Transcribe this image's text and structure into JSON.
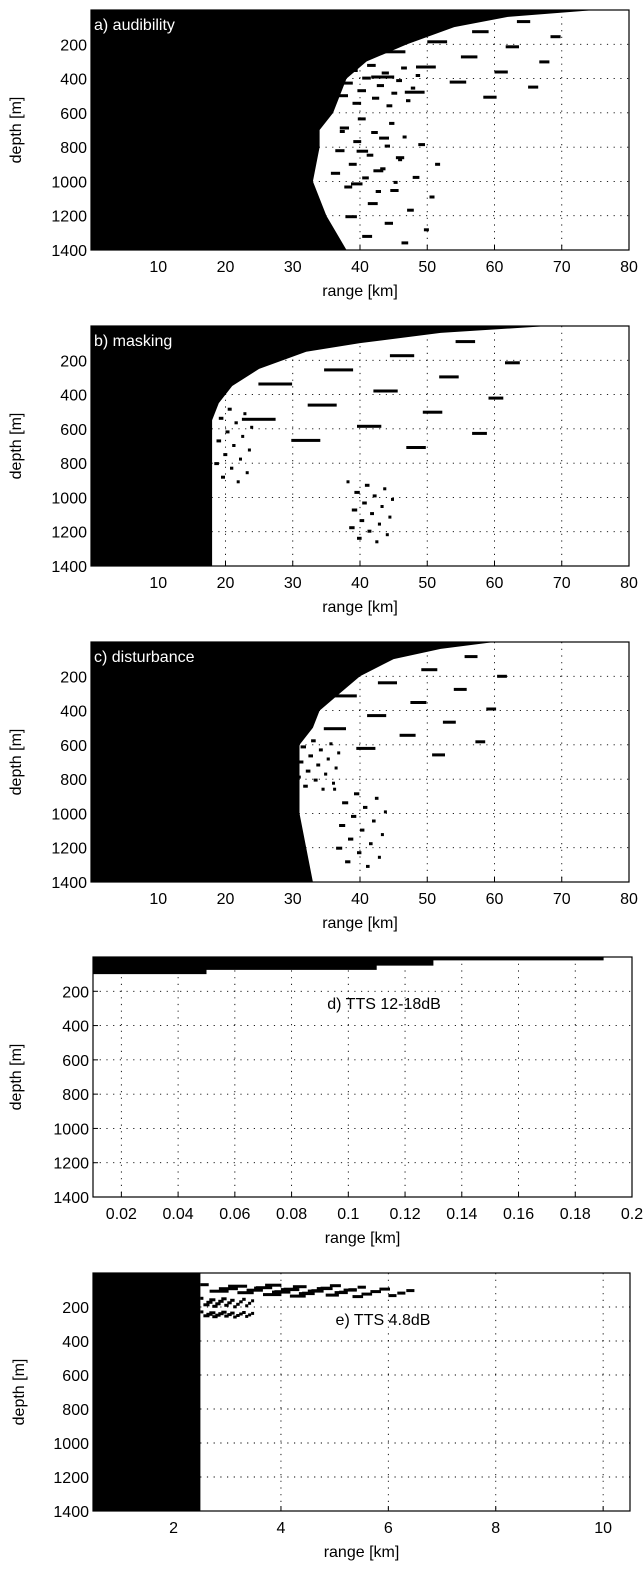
{
  "chart_data": [
    {
      "type": "heatmap",
      "title": "a) audibility",
      "xlabel": "range [km]",
      "ylabel": "depth [m]",
      "xlim": [
        0,
        80
      ],
      "ylim": [
        0,
        1400
      ],
      "y_reversed": true,
      "xticks": [
        10,
        20,
        30,
        40,
        50,
        60,
        70,
        80
      ],
      "yticks": [
        200,
        400,
        600,
        800,
        1000,
        1200,
        1400
      ],
      "grid": true,
      "fill_color": "#000000",
      "filled_region": [
        {
          "depth": 0,
          "range": 75
        },
        {
          "depth": 40,
          "range": 62
        },
        {
          "depth": 100,
          "range": 54
        },
        {
          "depth": 200,
          "range": 47
        },
        {
          "depth": 300,
          "range": 41
        },
        {
          "depth": 400,
          "range": 38
        },
        {
          "depth": 500,
          "range": 37
        },
        {
          "depth": 600,
          "range": 36
        },
        {
          "depth": 700,
          "range": 34
        },
        {
          "depth": 800,
          "range": 34
        },
        {
          "depth": 1000,
          "range": 33
        },
        {
          "depth": 1200,
          "range": 35
        },
        {
          "depth": 1400,
          "range": 38
        }
      ],
      "features": [
        {
          "depth_range": [
            300,
            550
          ],
          "range_range": [
            36,
            49
          ]
        },
        {
          "depth_range": [
            600,
            1050
          ],
          "range_range": [
            35,
            47
          ]
        },
        {
          "depth_range": [
            0,
            500
          ],
          "range_range": [
            40,
            70
          ]
        },
        {
          "depth_range": [
            700,
            1350
          ],
          "range_range": [
            37,
            52
          ]
        }
      ]
    },
    {
      "type": "heatmap",
      "title": "b) masking",
      "xlabel": "range [km]",
      "ylabel": "depth [m]",
      "xlim": [
        0,
        80
      ],
      "ylim": [
        0,
        1400
      ],
      "y_reversed": true,
      "xticks": [
        10,
        20,
        30,
        40,
        50,
        60,
        70,
        80
      ],
      "yticks": [
        200,
        400,
        600,
        800,
        1000,
        1200,
        1400
      ],
      "grid": true,
      "fill_color": "#000000",
      "filled_region": [
        {
          "depth": 0,
          "range": 68
        },
        {
          "depth": 40,
          "range": 52
        },
        {
          "depth": 100,
          "range": 40
        },
        {
          "depth": 150,
          "range": 32
        },
        {
          "depth": 250,
          "range": 25
        },
        {
          "depth": 350,
          "range": 21
        },
        {
          "depth": 450,
          "range": 19
        },
        {
          "depth": 550,
          "range": 18
        },
        {
          "depth": 700,
          "range": 18
        },
        {
          "depth": 900,
          "range": 18
        },
        {
          "depth": 1100,
          "range": 18
        },
        {
          "depth": 1250,
          "range": 18
        },
        {
          "depth": 1400,
          "range": 18
        }
      ],
      "features": [
        {
          "depth_range": [
            450,
            900
          ],
          "range_range": [
            18,
            24
          ]
        },
        {
          "depth_range": [
            0,
            700
          ],
          "range_range": [
            20,
            64
          ]
        },
        {
          "depth_range": [
            900,
            1250
          ],
          "range_range": [
            38,
            45
          ]
        }
      ]
    },
    {
      "type": "heatmap",
      "title": "c) disturbance",
      "xlabel": "range [km]",
      "ylabel": "depth [m]",
      "xlim": [
        0,
        80
      ],
      "ylim": [
        0,
        1400
      ],
      "y_reversed": true,
      "xticks": [
        10,
        20,
        30,
        40,
        50,
        60,
        70,
        80
      ],
      "yticks": [
        200,
        400,
        600,
        800,
        1000,
        1200,
        1400
      ],
      "grid": true,
      "fill_color": "#000000",
      "filled_region": [
        {
          "depth": 0,
          "range": 60
        },
        {
          "depth": 40,
          "range": 52
        },
        {
          "depth": 100,
          "range": 45
        },
        {
          "depth": 200,
          "range": 40
        },
        {
          "depth": 300,
          "range": 37
        },
        {
          "depth": 400,
          "range": 34
        },
        {
          "depth": 500,
          "range": 33
        },
        {
          "depth": 600,
          "range": 31
        },
        {
          "depth": 800,
          "range": 31
        },
        {
          "depth": 1000,
          "range": 31
        },
        {
          "depth": 1200,
          "range": 32
        },
        {
          "depth": 1400,
          "range": 33
        }
      ],
      "features": [
        {
          "depth_range": [
            550,
            850
          ],
          "range_range": [
            30,
            37
          ]
        },
        {
          "depth_range": [
            0,
            650
          ],
          "range_range": [
            33,
            62
          ]
        },
        {
          "depth_range": [
            850,
            1300
          ],
          "range_range": [
            36,
            44
          ]
        }
      ]
    },
    {
      "type": "heatmap",
      "title": "d) TTS 12-18dB",
      "xlabel": "range [km]",
      "ylabel": "depth [m]",
      "xlim": [
        0.01,
        0.2
      ],
      "ylim": [
        0,
        1400
      ],
      "y_reversed": true,
      "xticks": [
        0.02,
        0.04,
        0.06,
        0.08,
        0.1,
        0.12,
        0.14,
        0.16,
        0.18,
        0.2
      ],
      "xtick_labels": [
        "0.02",
        "0.04",
        "0.06",
        "0.08",
        "0.1",
        "0.12",
        "0.14",
        "0.16",
        "0.18",
        "0.2"
      ],
      "yticks": [
        200,
        400,
        600,
        800,
        1000,
        1200,
        1400
      ],
      "grid": true,
      "fill_color": "#000000",
      "filled_region": [
        {
          "depth": 0,
          "range": 0.19
        },
        {
          "depth": 20,
          "range": 0.19
        },
        {
          "depth": 20,
          "range": 0.13
        },
        {
          "depth": 50,
          "range": 0.13
        },
        {
          "depth": 50,
          "range": 0.11
        },
        {
          "depth": 75,
          "range": 0.11
        },
        {
          "depth": 75,
          "range": 0.05
        },
        {
          "depth": 100,
          "range": 0.05
        },
        {
          "depth": 100,
          "range": 0.01
        }
      ]
    },
    {
      "type": "heatmap",
      "title": "e) TTS 4.8dB",
      "xlabel": "range [km]",
      "ylabel": "depth [m]",
      "xlim": [
        0.5,
        10.5
      ],
      "ylim": [
        0,
        1400
      ],
      "y_reversed": true,
      "xticks": [
        2,
        4,
        6,
        8,
        10
      ],
      "yticks": [
        200,
        400,
        600,
        800,
        1000,
        1200,
        1400
      ],
      "grid": true,
      "fill_color": "#000000",
      "filled_region": [
        {
          "depth": 0,
          "range": 2.5
        },
        {
          "depth": 1400,
          "range": 2.5
        }
      ],
      "features": [
        {
          "depth_range": [
            60,
            110
          ],
          "range_range": [
            2.5,
            5.6
          ]
        },
        {
          "depth_range": [
            80,
            130
          ],
          "range_range": [
            3.5,
            6.5
          ]
        },
        {
          "depth_range": [
            140,
            190
          ],
          "range_range": [
            2.5,
            3.5
          ]
        },
        {
          "depth_range": [
            220,
            250
          ],
          "range_range": [
            2.5,
            3.5
          ]
        }
      ]
    }
  ]
}
